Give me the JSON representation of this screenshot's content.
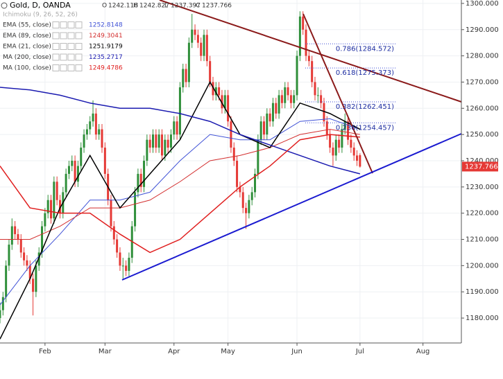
{
  "chart_data": {
    "type": "candlestick",
    "title": "Gold, D, OANDA",
    "ohlc_header": [
      [
        "O",
        "1242.118"
      ],
      [
        "H",
        "1242.827"
      ],
      [
        "L",
        "1237.397"
      ],
      [
        "C",
        "1237.766"
      ]
    ],
    "study_hidden": "Ichimoku (9, 26, 52, 26)",
    "up_color": "#2f8f3a",
    "down_color": "#e53935",
    "ohlc": [
      [
        1180,
        1186,
        1178,
        1183
      ],
      [
        1183,
        1190,
        1181,
        1188
      ],
      [
        1188,
        1202,
        1186,
        1200
      ],
      [
        1200,
        1210,
        1198,
        1208
      ],
      [
        1208,
        1218,
        1206,
        1215
      ],
      [
        1215,
        1217,
        1210,
        1212
      ],
      [
        1212,
        1214,
        1208,
        1210
      ],
      [
        1210,
        1212,
        1203,
        1205
      ],
      [
        1205,
        1207,
        1200,
        1202
      ],
      [
        1202,
        1204,
        1198,
        1200
      ],
      [
        1200,
        1202,
        1193,
        1195
      ],
      [
        1195,
        1197,
        1181,
        1190
      ],
      [
        1190,
        1202,
        1188,
        1200
      ],
      [
        1200,
        1207,
        1198,
        1205
      ],
      [
        1205,
        1217,
        1203,
        1215
      ],
      [
        1215,
        1222,
        1213,
        1220
      ],
      [
        1220,
        1227,
        1218,
        1225
      ],
      [
        1225,
        1227,
        1216,
        1218
      ],
      [
        1218,
        1234,
        1216,
        1232
      ],
      [
        1232,
        1234,
        1223,
        1225
      ],
      [
        1225,
        1227,
        1218,
        1220
      ],
      [
        1220,
        1230,
        1218,
        1228
      ],
      [
        1228,
        1237,
        1226,
        1235
      ],
      [
        1235,
        1240,
        1233,
        1238
      ],
      [
        1238,
        1242,
        1236,
        1240
      ],
      [
        1240,
        1242,
        1230,
        1232
      ],
      [
        1232,
        1240,
        1230,
        1238
      ],
      [
        1238,
        1247,
        1236,
        1245
      ],
      [
        1245,
        1252,
        1243,
        1250
      ],
      [
        1250,
        1254,
        1248,
        1252
      ],
      [
        1252,
        1257,
        1250,
        1255
      ],
      [
        1255,
        1263,
        1253,
        1258
      ],
      [
        1258,
        1260,
        1248,
        1250
      ],
      [
        1250,
        1254,
        1248,
        1252
      ],
      [
        1252,
        1254,
        1243,
        1245
      ],
      [
        1245,
        1247,
        1233,
        1235
      ],
      [
        1235,
        1237,
        1223,
        1225
      ],
      [
        1225,
        1227,
        1213,
        1215
      ],
      [
        1215,
        1217,
        1208,
        1210
      ],
      [
        1210,
        1212,
        1203,
        1205
      ],
      [
        1205,
        1207,
        1198,
        1200
      ],
      [
        1200,
        1203,
        1195,
        1200
      ],
      [
        1200,
        1202,
        1196,
        1198
      ],
      [
        1198,
        1205,
        1196,
        1203
      ],
      [
        1203,
        1217,
        1201,
        1215
      ],
      [
        1215,
        1230,
        1213,
        1228
      ],
      [
        1228,
        1237,
        1226,
        1235
      ],
      [
        1235,
        1237,
        1228,
        1230
      ],
      [
        1230,
        1242,
        1228,
        1240
      ],
      [
        1240,
        1250,
        1238,
        1248
      ],
      [
        1248,
        1250,
        1243,
        1245
      ],
      [
        1245,
        1252,
        1243,
        1250
      ],
      [
        1250,
        1252,
        1243,
        1245
      ],
      [
        1245,
        1252,
        1243,
        1250
      ],
      [
        1250,
        1252,
        1240,
        1242
      ],
      [
        1242,
        1250,
        1240,
        1248
      ],
      [
        1248,
        1250,
        1243,
        1245
      ],
      [
        1245,
        1252,
        1243,
        1250
      ],
      [
        1250,
        1257,
        1248,
        1255
      ],
      [
        1255,
        1257,
        1248,
        1250
      ],
      [
        1250,
        1270,
        1248,
        1268
      ],
      [
        1268,
        1277,
        1266,
        1275
      ],
      [
        1275,
        1277,
        1268,
        1270
      ],
      [
        1270,
        1287,
        1268,
        1285
      ],
      [
        1285,
        1296,
        1283,
        1290
      ],
      [
        1290,
        1292,
        1286,
        1288
      ],
      [
        1288,
        1290,
        1283,
        1285
      ],
      [
        1285,
        1287,
        1278,
        1280
      ],
      [
        1280,
        1290,
        1278,
        1288
      ],
      [
        1288,
        1290,
        1276,
        1278
      ],
      [
        1278,
        1280,
        1268,
        1270
      ],
      [
        1270,
        1272,
        1263,
        1265
      ],
      [
        1265,
        1270,
        1263,
        1268
      ],
      [
        1268,
        1270,
        1263,
        1265
      ],
      [
        1265,
        1267,
        1258,
        1260
      ],
      [
        1260,
        1267,
        1258,
        1265
      ],
      [
        1265,
        1267,
        1253,
        1255
      ],
      [
        1255,
        1257,
        1243,
        1245
      ],
      [
        1245,
        1247,
        1238,
        1240
      ],
      [
        1240,
        1242,
        1228,
        1230
      ],
      [
        1230,
        1232,
        1226,
        1228
      ],
      [
        1228,
        1230,
        1220,
        1222
      ],
      [
        1222,
        1224,
        1214,
        1220
      ],
      [
        1220,
        1227,
        1218,
        1225
      ],
      [
        1225,
        1230,
        1223,
        1228
      ],
      [
        1228,
        1237,
        1226,
        1235
      ],
      [
        1235,
        1250,
        1233,
        1248
      ],
      [
        1248,
        1257,
        1246,
        1255
      ],
      [
        1255,
        1257,
        1248,
        1250
      ],
      [
        1250,
        1260,
        1248,
        1258
      ],
      [
        1258,
        1260,
        1253,
        1255
      ],
      [
        1255,
        1264,
        1253,
        1262
      ],
      [
        1262,
        1264,
        1256,
        1258
      ],
      [
        1258,
        1267,
        1256,
        1265
      ],
      [
        1265,
        1267,
        1260,
        1262
      ],
      [
        1262,
        1270,
        1260,
        1268
      ],
      [
        1268,
        1270,
        1263,
        1265
      ],
      [
        1265,
        1267,
        1260,
        1262
      ],
      [
        1262,
        1267,
        1260,
        1265
      ],
      [
        1265,
        1282,
        1263,
        1280
      ],
      [
        1280,
        1297,
        1278,
        1295
      ],
      [
        1295,
        1297,
        1288,
        1290
      ],
      [
        1290,
        1292,
        1278,
        1280
      ],
      [
        1280,
        1282,
        1276,
        1278
      ],
      [
        1278,
        1280,
        1268,
        1270
      ],
      [
        1270,
        1272,
        1263,
        1265
      ],
      [
        1265,
        1268,
        1262,
        1265
      ],
      [
        1265,
        1267,
        1260,
        1262
      ],
      [
        1262,
        1264,
        1253,
        1255
      ],
      [
        1255,
        1257,
        1248,
        1250
      ],
      [
        1250,
        1252,
        1243,
        1245
      ],
      [
        1245,
        1247,
        1238,
        1242
      ],
      [
        1242,
        1250,
        1240,
        1248
      ],
      [
        1248,
        1250,
        1243,
        1245
      ],
      [
        1245,
        1254,
        1243,
        1252
      ],
      [
        1252,
        1258,
        1250,
        1255
      ],
      [
        1255,
        1257,
        1246,
        1248
      ],
      [
        1248,
        1250,
        1243,
        1245
      ],
      [
        1245,
        1247,
        1240,
        1242
      ],
      [
        1242,
        1244,
        1238,
        1240
      ],
      [
        1242.118,
        1242.827,
        1237.397,
        1237.766
      ]
    ],
    "x": [
      0,
      10,
      20,
      30,
      40,
      50,
      60,
      70,
      80,
      90,
      100,
      110,
      120
    ],
    "series": [
      {
        "name": "EMA (55, close)",
        "last": "1252.8148",
        "color": "#3f51d6",
        "width": 1,
        "values": [
          1185,
          1200,
          1212,
          1225,
          1225,
          1228,
          1240,
          1250,
          1248,
          1248,
          1255,
          1256,
          1252
        ]
      },
      {
        "name": "EMA (89, close)",
        "last": "1249.3041",
        "color": "#d32f2f",
        "width": 1,
        "values": [
          1210,
          1210,
          1215,
          1222,
          1222,
          1225,
          1232,
          1240,
          1242,
          1245,
          1250,
          1252,
          1250
        ]
      },
      {
        "name": "EMA (21, close)",
        "last": "1251.9179",
        "color": "#000000",
        "width": 1.5,
        "values": [
          1172,
          1195,
          1222,
          1242,
          1222,
          1235,
          1248,
          1270,
          1250,
          1245,
          1262,
          1258,
          1252
        ]
      },
      {
        "name": "MA (200, close)",
        "last": "1235.2717",
        "color": "#1a1ab0",
        "width": 1.5,
        "values": [
          1268,
          1267,
          1265,
          1262,
          1260,
          1260,
          1258,
          1255,
          1250,
          1246,
          1242,
          1238,
          1235
        ]
      },
      {
        "name": "MA (100, close)",
        "last": "1249.4786",
        "color": "#e01f1f",
        "width": 1.5,
        "values": [
          1238,
          1222,
          1220,
          1220,
          1212,
          1205,
          1210,
          1220,
          1230,
          1238,
          1248,
          1250,
          1249
        ]
      }
    ],
    "fib_levels": [
      {
        "label": "0.786(1284.572)",
        "value": 1284.572
      },
      {
        "label": "0.618(1275.373)",
        "value": 1275.373
      },
      {
        "label": "0.382(1262.451)",
        "value": 1262.451
      },
      {
        "label": "0.236(1254.457)",
        "value": 1254.457
      }
    ],
    "price_tag": "1237.766",
    "xlim": [
      0,
      153.8
    ],
    "ylim": [
      1170.5,
      1301.3
    ],
    "yticks": [
      {
        "value": 1300,
        "label": "1300.000"
      },
      {
        "value": 1290,
        "label": "1290.000"
      },
      {
        "value": 1280,
        "label": "1280.000"
      },
      {
        "value": 1270,
        "label": "1270.000"
      },
      {
        "value": 1260,
        "label": "1260.000"
      },
      {
        "value": 1250,
        "label": "1250.000"
      },
      {
        "value": 1240,
        "label": "1240.000"
      },
      {
        "value": 1230,
        "label": "1230.000"
      },
      {
        "value": 1220,
        "label": "1220.000"
      },
      {
        "value": 1210,
        "label": "1210.000"
      },
      {
        "value": 1200,
        "label": "1200.000"
      },
      {
        "value": 1190,
        "label": "1190.000"
      },
      {
        "value": 1180,
        "label": "1180.000"
      }
    ],
    "xticks": [
      {
        "value": 15,
        "label": "Feb"
      },
      {
        "value": 35,
        "label": "Mar"
      },
      {
        "value": 58,
        "label": "Apr"
      },
      {
        "value": 76,
        "label": "May"
      },
      {
        "value": 99,
        "label": "Jun"
      },
      {
        "value": 120,
        "label": "Jul"
      },
      {
        "value": 141,
        "label": "Aug"
      }
    ]
  }
}
